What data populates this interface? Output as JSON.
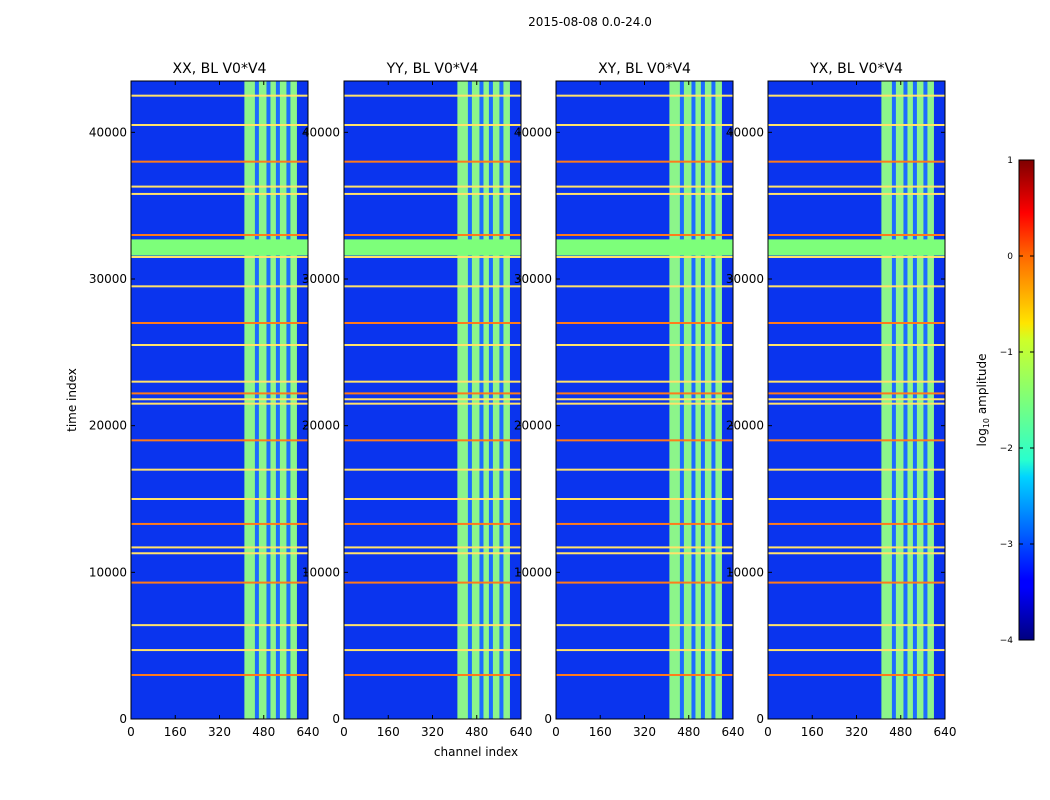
{
  "chart_data": {
    "type": "heatmap",
    "suptitle": "2015-08-08 0.0-24.0",
    "xlabel": "channel index",
    "ylabel": "time index",
    "xlim": [
      0,
      640
    ],
    "ylim": [
      0,
      43500
    ],
    "xticks": [
      0,
      160,
      320,
      480,
      640
    ],
    "yticks": [
      0,
      10000,
      20000,
      30000,
      40000
    ],
    "panels": [
      {
        "id": "xx",
        "title": "XX, BL V0*V4"
      },
      {
        "id": "yy",
        "title": "YY, BL V0*V4"
      },
      {
        "id": "xy",
        "title": "XY, BL V0*V4"
      },
      {
        "id": "yx",
        "title": "YX, BL V0*V4"
      }
    ],
    "colorbar": {
      "label": "log10 amplitude",
      "label_base": "log",
      "label_sub": "10",
      "label_rest": " amplitude",
      "range": [
        -4,
        1
      ],
      "ticks": [
        1,
        0,
        -1,
        -2,
        -3,
        -4
      ],
      "tick_labels": [
        "1",
        "0",
        "−1",
        "−2",
        "−3",
        "−4"
      ],
      "colormap": "jet"
    },
    "bright_channel_band": [
      410,
      600
    ],
    "flagged_time_rows": [
      3000,
      4700,
      6400,
      9300,
      11300,
      11700,
      13300,
      15000,
      17000,
      19000,
      21500,
      21800,
      22200,
      23000,
      25500,
      27000,
      29500,
      31500,
      33000,
      35800,
      36300,
      38000,
      40500,
      42500
    ]
  }
}
